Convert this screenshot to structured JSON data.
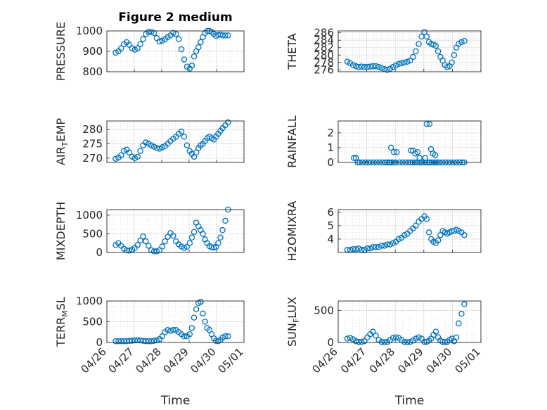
{
  "figure": {
    "title": "Figure 2 medium",
    "xlabel": "Time",
    "marker_color": "#0072BD",
    "grid": true,
    "minor_grid": true
  },
  "chart_data": [
    {
      "type": "scatter",
      "ylabel": "PRESSURE",
      "ylim": [
        800,
        1000
      ],
      "yticks": [
        "800",
        "900",
        "1000"
      ],
      "xticks": [
        "04/26",
        "04/27",
        "04/28",
        "04/29",
        "04/30",
        "05/01"
      ],
      "x": [
        0.32,
        0.42,
        0.52,
        0.62,
        0.72,
        0.82,
        0.92,
        1.02,
        1.12,
        1.22,
        1.32,
        1.42,
        1.52,
        1.62,
        1.72,
        1.82,
        1.92,
        2.02,
        2.12,
        2.22,
        2.32,
        2.42,
        2.52,
        2.62,
        2.72,
        2.82,
        2.92,
        3.02,
        3.1,
        3.18,
        3.26,
        3.34,
        3.42,
        3.5,
        3.58,
        3.66,
        3.74,
        3.82,
        3.9,
        3.98,
        4.06,
        4.14,
        4.22,
        4.32,
        4.42
      ],
      "values": [
        893,
        900,
        915,
        935,
        945,
        932,
        915,
        908,
        915,
        935,
        960,
        985,
        995,
        995,
        990,
        965,
        948,
        952,
        960,
        970,
        978,
        990,
        985,
        960,
        910,
        860,
        825,
        815,
        830,
        875,
        900,
        920,
        945,
        970,
        990,
        1000,
        1000,
        995,
        985,
        975,
        980,
        982,
        978,
        978,
        978
      ]
    },
    {
      "type": "scatter",
      "ylabel": "THETA",
      "ylim": [
        275.5,
        286.5
      ],
      "yticks": [
        "276",
        "278",
        "280",
        "282",
        "284",
        "286"
      ],
      "xticks": [
        "04/26",
        "04/27",
        "04/28",
        "04/29",
        "04/30",
        "05/01"
      ],
      "x": [
        0.32,
        0.42,
        0.52,
        0.62,
        0.72,
        0.82,
        0.92,
        1.02,
        1.12,
        1.22,
        1.32,
        1.42,
        1.52,
        1.62,
        1.72,
        1.82,
        1.92,
        2.02,
        2.12,
        2.22,
        2.32,
        2.42,
        2.52,
        2.62,
        2.72,
        2.82,
        2.92,
        3.02,
        3.1,
        3.18,
        3.26,
        3.34,
        3.42,
        3.5,
        3.58,
        3.66,
        3.74,
        3.82,
        3.9,
        3.98,
        4.06,
        4.14,
        4.22,
        4.32,
        4.42
      ],
      "values": [
        278.2,
        277.8,
        277.3,
        277.0,
        276.8,
        276.9,
        276.8,
        276.8,
        276.9,
        277.0,
        277.0,
        276.8,
        276.5,
        276.2,
        276.0,
        276.3,
        276.8,
        277.2,
        277.6,
        277.8,
        278.0,
        278.2,
        278.5,
        279.5,
        281.0,
        283.0,
        285.0,
        286.2,
        285.0,
        283.5,
        283.0,
        282.8,
        282.5,
        281.0,
        279.5,
        278.5,
        277.3,
        276.8,
        277.0,
        278.0,
        280.0,
        282.0,
        283.0,
        283.5,
        283.8
      ]
    },
    {
      "type": "scatter",
      "ylabel": "AIR_TEMP",
      "ylim": [
        268.5,
        283
      ],
      "yticks": [
        "270",
        "275",
        "280"
      ],
      "xticks": [
        "04/26",
        "04/27",
        "04/28",
        "04/29",
        "04/30",
        "05/01"
      ],
      "x": [
        0.32,
        0.42,
        0.52,
        0.62,
        0.72,
        0.82,
        0.92,
        1.02,
        1.12,
        1.22,
        1.32,
        1.42,
        1.52,
        1.62,
        1.72,
        1.82,
        1.92,
        2.02,
        2.12,
        2.22,
        2.32,
        2.42,
        2.52,
        2.62,
        2.72,
        2.82,
        2.92,
        3.02,
        3.1,
        3.18,
        3.26,
        3.34,
        3.42,
        3.5,
        3.58,
        3.66,
        3.74,
        3.82,
        3.9,
        3.98,
        4.06,
        4.14,
        4.22,
        4.32,
        4.42
      ],
      "values": [
        269.8,
        270.2,
        271.0,
        272.5,
        273.0,
        272.0,
        270.5,
        270.0,
        270.5,
        272.5,
        274.5,
        275.5,
        275.0,
        274.5,
        274.0,
        273.5,
        273.3,
        273.8,
        274.2,
        275.0,
        276.0,
        276.8,
        277.5,
        278.5,
        279.3,
        277.5,
        274.5,
        272.5,
        271.5,
        270.5,
        272.0,
        273.5,
        274.5,
        275.0,
        276.0,
        277.0,
        277.5,
        277.0,
        276.5,
        277.5,
        278.5,
        279.5,
        280.5,
        281.5,
        282.5
      ]
    },
    {
      "type": "scatter",
      "ylabel": "RAINFALL",
      "ylim": [
        0,
        2.8
      ],
      "yticks": [
        "0",
        "1",
        "2"
      ],
      "xticks": [
        "04/26",
        "04/27",
        "04/28",
        "04/29",
        "04/30",
        "05/01"
      ],
      "x": [
        0.55,
        0.62,
        0.68,
        0.75,
        0.85,
        0.95,
        1.05,
        1.15,
        1.25,
        1.35,
        1.45,
        1.55,
        1.65,
        1.72,
        1.78,
        1.85,
        1.95,
        2.05,
        2.15,
        2.25,
        2.35,
        2.45,
        2.55,
        2.62,
        2.68,
        2.75,
        2.85,
        2.95,
        3.05,
        3.12,
        3.18,
        3.22,
        3.28,
        3.35,
        3.42,
        3.48,
        3.55,
        3.65,
        3.75,
        3.85,
        3.95,
        4.05,
        4.15,
        4.25,
        4.35,
        4.42,
        1.82,
        1.88,
        1.95,
        2.02,
        2.55,
        2.62,
        2.7,
        2.78,
        2.85,
        2.92,
        3.05,
        3.1,
        3.2,
        3.25,
        3.32,
        3.4
      ],
      "values": [
        0.3,
        0.3,
        0,
        0,
        0,
        0,
        0,
        0,
        0,
        0,
        0,
        0,
        0,
        0,
        0,
        1.0,
        0.7,
        0.7,
        0,
        0,
        0,
        0,
        0,
        0,
        0,
        0,
        0,
        0,
        0,
        0,
        0,
        0,
        0,
        0,
        0,
        0,
        0,
        0,
        0,
        0,
        0,
        0,
        0,
        0,
        0,
        0,
        0,
        0,
        0,
        0,
        0.8,
        0.8,
        0.6,
        0.7,
        0.3,
        0,
        0.3,
        2.6,
        2.6,
        0.9,
        0.6,
        0.5
      ]
    },
    {
      "type": "scatter",
      "ylabel": "MIXDEPTH",
      "ylim": [
        0,
        1150
      ],
      "yticks": [
        "0",
        "500",
        "1000"
      ],
      "xticks": [
        "04/26",
        "04/27",
        "04/28",
        "04/29",
        "04/30",
        "05/01"
      ],
      "x": [
        0.32,
        0.42,
        0.52,
        0.62,
        0.72,
        0.82,
        0.92,
        1.02,
        1.12,
        1.22,
        1.32,
        1.42,
        1.52,
        1.62,
        1.72,
        1.82,
        1.92,
        2.02,
        2.12,
        2.22,
        2.32,
        2.42,
        2.52,
        2.62,
        2.72,
        2.82,
        2.92,
        3.02,
        3.1,
        3.18,
        3.26,
        3.34,
        3.42,
        3.5,
        3.58,
        3.66,
        3.74,
        3.82,
        3.9,
        3.98,
        4.06,
        4.14,
        4.22,
        4.32,
        4.42
      ],
      "values": [
        200,
        250,
        180,
        100,
        60,
        50,
        80,
        120,
        200,
        320,
        430,
        300,
        180,
        60,
        30,
        30,
        60,
        160,
        300,
        420,
        520,
        450,
        300,
        220,
        160,
        120,
        150,
        250,
        400,
        550,
        800,
        700,
        600,
        500,
        350,
        250,
        170,
        140,
        130,
        150,
        250,
        400,
        600,
        850,
        1150
      ]
    },
    {
      "type": "scatter",
      "ylabel": "H2OMIXRA",
      "ylim": [
        3.0,
        6.2
      ],
      "yticks": [
        "4",
        "5",
        "6"
      ],
      "xticks": [
        "04/26",
        "04/27",
        "04/28",
        "04/29",
        "04/30",
        "05/01"
      ],
      "x": [
        0.32,
        0.42,
        0.52,
        0.62,
        0.72,
        0.82,
        0.92,
        1.02,
        1.12,
        1.22,
        1.32,
        1.42,
        1.52,
        1.62,
        1.72,
        1.82,
        1.92,
        2.02,
        2.12,
        2.22,
        2.32,
        2.42,
        2.52,
        2.62,
        2.72,
        2.82,
        2.92,
        3.02,
        3.1,
        3.18,
        3.26,
        3.34,
        3.42,
        3.5,
        3.58,
        3.66,
        3.74,
        3.82,
        3.9,
        3.98,
        4.06,
        4.14,
        4.22,
        4.32,
        4.42
      ],
      "values": [
        3.2,
        3.2,
        3.25,
        3.25,
        3.3,
        3.2,
        3.2,
        3.3,
        3.3,
        3.4,
        3.4,
        3.4,
        3.5,
        3.5,
        3.6,
        3.6,
        3.7,
        3.8,
        4.0,
        4.1,
        4.3,
        4.4,
        4.6,
        4.8,
        5.0,
        5.3,
        5.5,
        5.7,
        5.5,
        4.5,
        4.0,
        3.8,
        3.7,
        3.9,
        4.3,
        4.6,
        4.5,
        4.4,
        4.5,
        4.6,
        4.6,
        4.7,
        4.6,
        4.5,
        4.3
      ]
    },
    {
      "type": "scatter",
      "ylabel": "TERR_MSL",
      "ylim": [
        0,
        1000
      ],
      "yticks": [
        "0",
        "500",
        "1000"
      ],
      "xticks": [
        "04/26",
        "04/27",
        "04/28",
        "04/29",
        "04/30",
        "05/01"
      ],
      "x": [
        0.32,
        0.42,
        0.52,
        0.62,
        0.72,
        0.82,
        0.92,
        1.02,
        1.12,
        1.22,
        1.32,
        1.42,
        1.52,
        1.62,
        1.72,
        1.82,
        1.92,
        2.02,
        2.12,
        2.22,
        2.32,
        2.42,
        2.52,
        2.62,
        2.72,
        2.82,
        2.92,
        3.02,
        3.1,
        3.18,
        3.26,
        3.34,
        3.42,
        3.5,
        3.58,
        3.66,
        3.74,
        3.82,
        3.9,
        3.98,
        4.06,
        4.14,
        4.22,
        4.32,
        4.42
      ],
      "values": [
        30,
        30,
        30,
        30,
        30,
        40,
        40,
        50,
        50,
        50,
        40,
        30,
        30,
        30,
        40,
        50,
        80,
        150,
        250,
        300,
        280,
        300,
        300,
        250,
        200,
        150,
        150,
        200,
        350,
        600,
        800,
        950,
        980,
        700,
        500,
        350,
        300,
        200,
        100,
        40,
        30,
        60,
        120,
        150,
        150
      ]
    },
    {
      "type": "scatter",
      "ylabel": "SUN_FLUX",
      "ylim": [
        0,
        650
      ],
      "yticks": [
        "0",
        "500"
      ],
      "xticks": [
        "04/26",
        "04/27",
        "04/28",
        "04/29",
        "04/30",
        "05/01"
      ],
      "x": [
        0.32,
        0.42,
        0.52,
        0.62,
        0.72,
        0.82,
        0.92,
        1.02,
        1.12,
        1.22,
        1.32,
        1.42,
        1.52,
        1.62,
        1.72,
        1.82,
        1.92,
        2.02,
        2.12,
        2.22,
        2.32,
        2.42,
        2.52,
        2.62,
        2.72,
        2.82,
        2.92,
        3.02,
        3.1,
        3.18,
        3.26,
        3.34,
        3.42,
        3.5,
        3.58,
        3.66,
        3.74,
        3.82,
        3.9,
        3.98,
        4.06,
        4.14,
        4.22,
        4.32,
        4.42
      ],
      "values": [
        60,
        70,
        50,
        20,
        10,
        10,
        20,
        80,
        130,
        170,
        110,
        40,
        10,
        5,
        10,
        40,
        70,
        80,
        70,
        40,
        10,
        5,
        10,
        30,
        60,
        80,
        60,
        10,
        10,
        30,
        60,
        120,
        170,
        80,
        30,
        10,
        5,
        10,
        40,
        60,
        20,
        80,
        300,
        450,
        600
      ]
    }
  ]
}
